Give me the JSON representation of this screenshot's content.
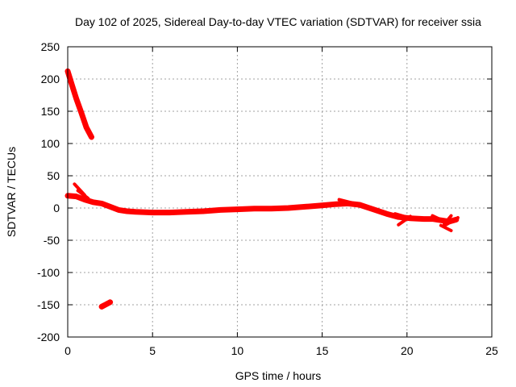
{
  "chart_data": {
    "type": "scatter",
    "title": "Day 102 of 2025, Sidereal Day-to-day VTEC variation (SDTVAR) for receiver ssia",
    "xlabel": "GPS time / hours",
    "ylabel": "SDTVAR / TECUs",
    "xlim": [
      0,
      25
    ],
    "ylim": [
      -200,
      250
    ],
    "xticks": [
      0,
      5,
      10,
      15,
      20,
      25
    ],
    "yticks": [
      -200,
      -150,
      -100,
      -50,
      0,
      50,
      100,
      150,
      200,
      250
    ],
    "grid": true,
    "series": [
      {
        "name": "SDTVAR",
        "color": "#ff0000",
        "segments": [
          [
            [
              0.0,
              212
            ],
            [
              0.2,
              195
            ],
            [
              0.5,
              170
            ],
            [
              0.8,
              148
            ],
            [
              1.1,
              125
            ],
            [
              1.4,
              110
            ]
          ],
          [
            [
              2.0,
              -153
            ],
            [
              2.5,
              -146
            ]
          ],
          [
            [
              0.0,
              19
            ],
            [
              0.5,
              18
            ],
            [
              1.0,
              13
            ],
            [
              1.5,
              9
            ],
            [
              2.0,
              7
            ],
            [
              2.5,
              2
            ],
            [
              3.0,
              -3
            ],
            [
              3.5,
              -5
            ],
            [
              4.0,
              -6
            ],
            [
              5.0,
              -7
            ],
            [
              6.0,
              -7
            ],
            [
              7.0,
              -6
            ],
            [
              8.0,
              -5
            ],
            [
              9.0,
              -3
            ],
            [
              10.0,
              -2
            ],
            [
              11.0,
              -1
            ],
            [
              12.0,
              -1
            ],
            [
              13.0,
              0
            ],
            [
              14.0,
              2
            ],
            [
              15.0,
              4
            ],
            [
              15.8,
              6
            ],
            [
              16.5,
              7
            ],
            [
              17.2,
              5
            ],
            [
              18.0,
              -2
            ],
            [
              18.8,
              -9
            ],
            [
              19.5,
              -14
            ],
            [
              20.2,
              -16
            ],
            [
              21.0,
              -17
            ],
            [
              21.5,
              -17
            ],
            [
              22.0,
              -19
            ],
            [
              22.5,
              -21
            ],
            [
              22.9,
              -18
            ]
          ]
        ],
        "spikes": [
          [
            [
              0.4,
              37
            ],
            [
              1.0,
              20
            ]
          ],
          [
            [
              0.6,
              27
            ],
            [
              1.2,
              15
            ]
          ],
          [
            [
              16.0,
              13
            ],
            [
              17.5,
              3
            ]
          ],
          [
            [
              19.5,
              -26
            ],
            [
              20.2,
              -13
            ]
          ],
          [
            [
              19.3,
              -9
            ],
            [
              20.5,
              -18
            ]
          ],
          [
            [
              21.5,
              -12
            ],
            [
              22.3,
              -22
            ]
          ],
          [
            [
              22.0,
              -27
            ],
            [
              22.6,
              -35
            ]
          ],
          [
            [
              22.3,
              -26
            ],
            [
              23.0,
              -15
            ]
          ],
          [
            [
              22.6,
              -12
            ],
            [
              22.2,
              -25
            ]
          ]
        ]
      }
    ]
  }
}
